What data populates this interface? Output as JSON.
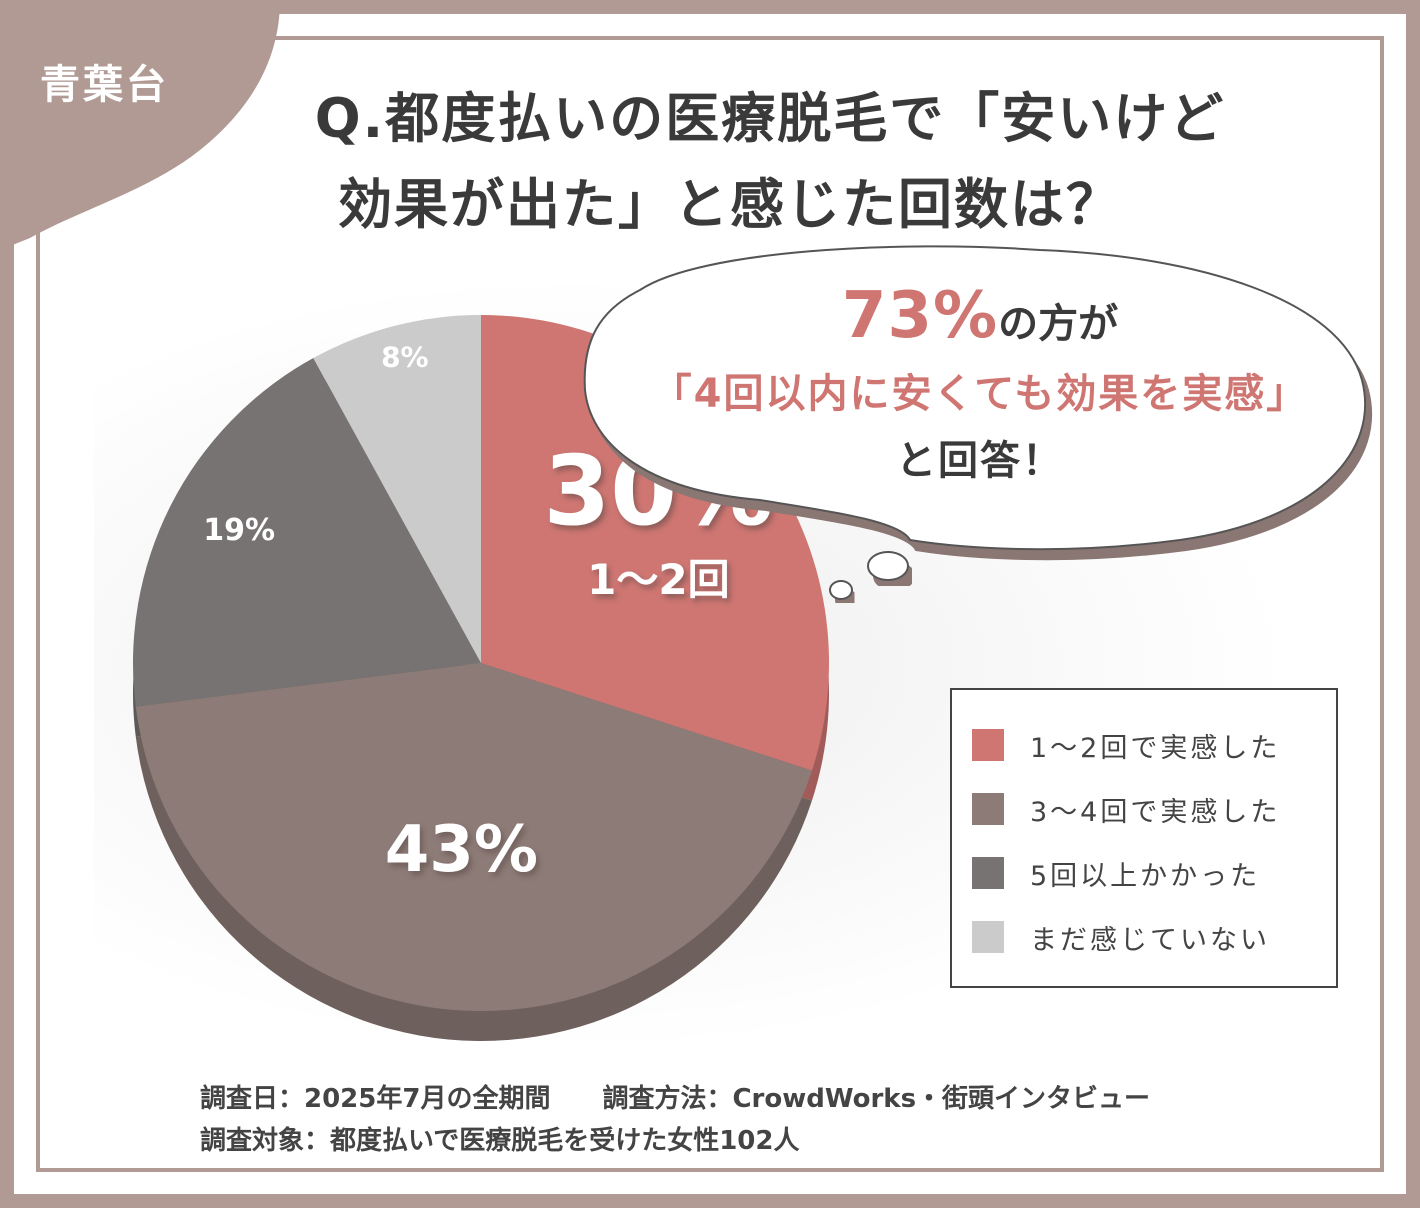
{
  "brand": "青葉台",
  "title_line1": "Q.都度払いの医療脱毛で「安いけど",
  "title_line2": "効果が出た」と感じた回数は？",
  "bubble": {
    "pct": "73%",
    "line1_suffix": "の方が",
    "line2": "「4回以内に安くても効果を実感」",
    "line3": "と回答！"
  },
  "chart_data": {
    "type": "pie",
    "categories": [
      "1～2回で実感した",
      "3～4回で実感した",
      "5回以上かかった",
      "まだ感じていない"
    ],
    "values": [
      30,
      43,
      19,
      8
    ],
    "slice_labels": [
      "30%",
      "43%",
      "19%",
      "8%"
    ],
    "slice_sublabels": [
      "1～2回",
      "",
      "",
      ""
    ],
    "colors": [
      "#cf7672",
      "#8d7b77",
      "#767372",
      "#cccbcb"
    ],
    "legend_position": "right"
  },
  "legend": [
    {
      "label": "1～2回で実感した",
      "color": "#cf7672"
    },
    {
      "label": "3～4回で実感した",
      "color": "#8d7b77"
    },
    {
      "label": "5回以上かかった",
      "color": "#767372"
    },
    {
      "label": "まだ感じていない",
      "color": "#cccbcb"
    }
  ],
  "footer": {
    "line1": "調査日：2025年7月の全期間　　調査方法：CrowdWorks・街頭インタビュー",
    "line2": "調査対象：都度払いで医療脱毛を受けた女性102人"
  }
}
